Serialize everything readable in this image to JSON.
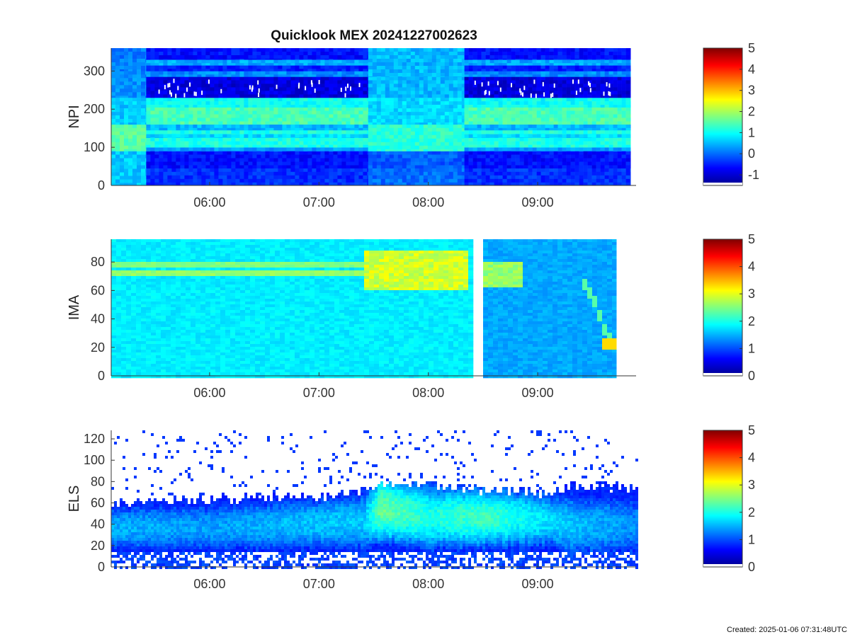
{
  "title": "Quicklook MEX 20241227002623",
  "footer": {
    "created": "Created: 2025-01-06 07:31:48UTC"
  },
  "chart_data": [
    {
      "type": "heatmap",
      "ylabel": "NPI",
      "ylim": [
        0,
        360
      ],
      "yticks": [
        0,
        100,
        200,
        300
      ],
      "xlim_hours": [
        5.1,
        9.9
      ],
      "xticks": [
        6,
        7,
        8,
        9
      ],
      "xtick_labels": [
        "06:00",
        "07:00",
        "08:00",
        "09:00"
      ],
      "colorbar": {
        "min": -1.5,
        "max": 5,
        "ticks": [
          -1,
          0,
          1,
          2,
          3,
          4,
          5
        ]
      },
      "segments": [
        {
          "t0": 5.1,
          "t1": 5.42,
          "level": "low"
        },
        {
          "t0": 5.42,
          "t1": 7.45,
          "level": "high"
        },
        {
          "t0": 7.45,
          "t1": 8.33,
          "level": "mid"
        },
        {
          "t0": 8.33,
          "t1": 9.85,
          "level": "high"
        }
      ],
      "bands_high": [
        {
          "y0": 0,
          "y1": 45,
          "v": -0.4
        },
        {
          "y0": 45,
          "y1": 90,
          "v": -0.6
        },
        {
          "y0": 90,
          "y1": 100,
          "v": 0.3
        },
        {
          "y0": 100,
          "y1": 125,
          "v": 1.1
        },
        {
          "y0": 125,
          "y1": 135,
          "v": 0.7
        },
        {
          "y0": 135,
          "y1": 145,
          "v": 1.1
        },
        {
          "y0": 145,
          "y1": 160,
          "v": 0.5
        },
        {
          "y0": 160,
          "y1": 205,
          "v": 1.4
        },
        {
          "y0": 205,
          "y1": 230,
          "v": 1.0
        },
        {
          "y0": 230,
          "y1": 285,
          "v": -0.9
        },
        {
          "y0": 285,
          "y1": 300,
          "v": 0.2
        },
        {
          "y0": 300,
          "y1": 315,
          "v": -0.5
        },
        {
          "y0": 315,
          "y1": 330,
          "v": 0.4
        },
        {
          "y0": 330,
          "y1": 360,
          "v": -0.6
        }
      ],
      "bands_low": [
        {
          "y0": 0,
          "y1": 90,
          "v": 0.6
        },
        {
          "y0": 90,
          "y1": 160,
          "v": 1.5
        },
        {
          "y0": 160,
          "y1": 230,
          "v": 0.6
        },
        {
          "y0": 230,
          "y1": 300,
          "v": 0.2
        },
        {
          "y0": 300,
          "y1": 360,
          "v": 0.1
        }
      ],
      "bands_mid": [
        {
          "y0": 0,
          "y1": 45,
          "v": 0.0
        },
        {
          "y0": 45,
          "y1": 90,
          "v": -0.1
        },
        {
          "y0": 90,
          "y1": 160,
          "v": 1.2
        },
        {
          "y0": 160,
          "y1": 230,
          "v": 0.7
        },
        {
          "y0": 230,
          "y1": 285,
          "v": 0.5
        },
        {
          "y0": 285,
          "y1": 360,
          "v": 0.5
        }
      ]
    },
    {
      "type": "heatmap",
      "ylabel": "IMA",
      "ylim": [
        0,
        96
      ],
      "yticks": [
        0,
        20,
        40,
        60,
        80
      ],
      "xlim_hours": [
        5.1,
        9.9
      ],
      "xticks": [
        6,
        7,
        8,
        9
      ],
      "xtick_labels": [
        "06:00",
        "07:00",
        "08:00",
        "09:00"
      ],
      "colorbar": {
        "min": 0,
        "max": 5,
        "ticks": [
          0,
          1,
          2,
          3,
          4,
          5
        ]
      },
      "data_gap_hours": [
        8.38,
        8.48
      ],
      "data_end_hour": 9.72,
      "background_level": 1.8,
      "lines": [
        {
          "t0": 5.1,
          "t1": 7.4,
          "y": 79,
          "v": 2.5
        },
        {
          "t0": 5.1,
          "t1": 7.4,
          "y": 73,
          "v": 2.6
        }
      ],
      "hot_region": {
        "t0": 7.4,
        "t1": 8.35,
        "y0": 62,
        "y1": 90,
        "v": 2.9
      },
      "hot_region_2": {
        "t0": 8.48,
        "t1": 8.85,
        "y0": 63,
        "y1": 82,
        "v": 2.6
      },
      "descending_feature": [
        {
          "t": 9.4,
          "y": 66
        },
        {
          "t": 9.48,
          "y": 56
        },
        {
          "t": 9.55,
          "y": 42
        },
        {
          "t": 9.6,
          "y": 30
        },
        {
          "t": 9.66,
          "y": 24
        }
      ],
      "end_blob": {
        "t0": 9.58,
        "t1": 9.72,
        "y0": 19,
        "y1": 28,
        "v": 3.3
      }
    },
    {
      "type": "heatmap",
      "ylabel": "ELS",
      "ylim": [
        0,
        128
      ],
      "yticks": [
        0,
        20,
        40,
        60,
        80,
        100,
        120
      ],
      "xlim_hours": [
        5.1,
        9.9
      ],
      "xticks": [
        6,
        7,
        8,
        9
      ],
      "xtick_labels": [
        "06:00",
        "07:00",
        "08:00",
        "09:00"
      ],
      "colorbar": {
        "min": 0,
        "max": 5,
        "ticks": [
          0,
          1,
          2,
          3,
          4,
          5
        ]
      },
      "profile": [
        {
          "t": 5.1,
          "center": 38,
          "top": 62,
          "peak": 1.5
        },
        {
          "t": 6.0,
          "center": 38,
          "top": 65,
          "peak": 1.4
        },
        {
          "t": 7.0,
          "center": 42,
          "top": 68,
          "peak": 1.6
        },
        {
          "t": 7.4,
          "center": 44,
          "top": 72,
          "peak": 1.6
        },
        {
          "t": 7.55,
          "center": 56,
          "top": 80,
          "peak": 2.4
        },
        {
          "t": 8.0,
          "center": 48,
          "top": 78,
          "peak": 2.0
        },
        {
          "t": 8.5,
          "center": 48,
          "top": 74,
          "peak": 2.2
        },
        {
          "t": 9.1,
          "center": 45,
          "top": 70,
          "peak": 1.7
        },
        {
          "t": 9.3,
          "center": 40,
          "top": 78,
          "peak": 1.6
        },
        {
          "t": 9.9,
          "center": 40,
          "top": 75,
          "peak": 1.3
        }
      ]
    }
  ]
}
